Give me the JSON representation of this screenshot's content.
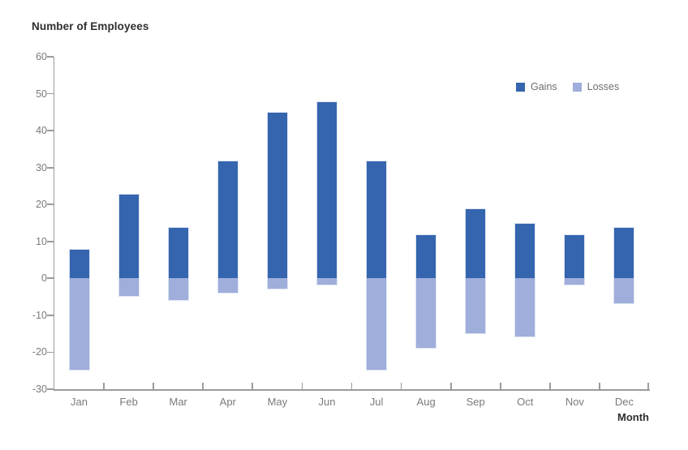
{
  "chart_data": {
    "type": "bar",
    "variant": "diverging-stacked-column",
    "title": "Number of Employees",
    "xlabel": "Month",
    "ylabel": "",
    "categories": [
      "Jan",
      "Feb",
      "Mar",
      "Apr",
      "May",
      "Jun",
      "Jul",
      "Aug",
      "Sep",
      "Oct",
      "Nov",
      "Dec"
    ],
    "series": [
      {
        "name": "Gains",
        "color": "#3565AE",
        "values": [
          8,
          23,
          14,
          32,
          45,
          48,
          32,
          12,
          19,
          15,
          12,
          14
        ]
      },
      {
        "name": "Losses",
        "color": "#9FAEDA",
        "values": [
          -25,
          -5,
          -6,
          -4,
          -3,
          -2,
          -25,
          -19,
          -15,
          -16,
          -2,
          -7
        ]
      }
    ],
    "ylim": [
      -30,
      60
    ],
    "yticks": [
      60,
      50,
      40,
      30,
      20,
      10,
      0,
      -10,
      -20,
      -30
    ],
    "grid": false,
    "legend_position": "top-right"
  },
  "style": {
    "gain_color": "#3565AE",
    "loss_color": "#9FAEDA",
    "bar_border_color": "#DEE4F4",
    "axis_color": "#9B9B9B",
    "tick_label_color": "#7A7A7A",
    "title_color": "#2F2F2F"
  }
}
